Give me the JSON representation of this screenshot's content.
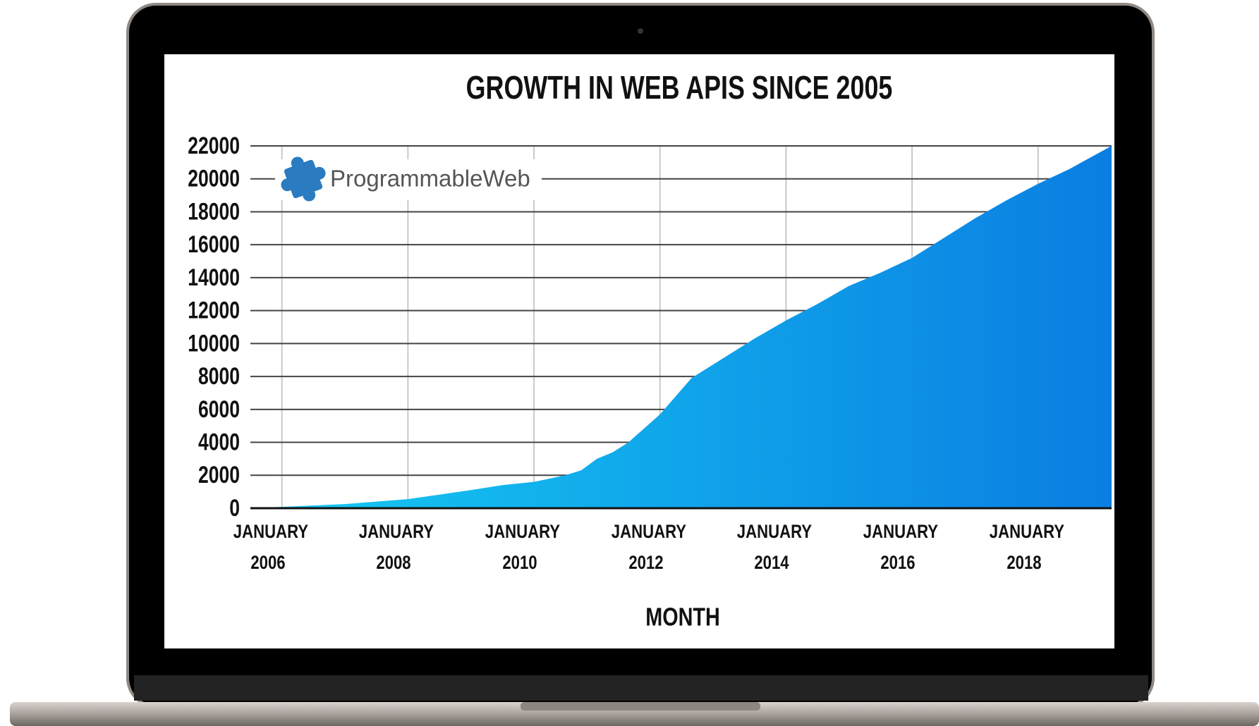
{
  "chart_data": {
    "type": "area",
    "title": "GROWTH IN WEB APIS SINCE 2005",
    "x_label": "MONTH",
    "logo_text": "ProgrammableWeb",
    "x": [
      "2005-07",
      "2006-01",
      "2007-01",
      "2008-01",
      "2009-01",
      "2009-07",
      "2010-01",
      "2010-07",
      "2010-10",
      "2011-01",
      "2011-04",
      "2011-07",
      "2012-01",
      "2012-07",
      "2013-01",
      "2013-07",
      "2014-01",
      "2014-07",
      "2015-01",
      "2015-07",
      "2016-01",
      "2016-07",
      "2017-01",
      "2017-07",
      "2018-01",
      "2018-07",
      "2019-03"
    ],
    "series": [
      {
        "colors": [
          "#16cbf2",
          "#0a7ee2"
        ],
        "values": [
          0,
          80,
          250,
          550,
          1100,
          1400,
          1600,
          2000,
          2300,
          3000,
          3400,
          4000,
          5700,
          7900,
          9100,
          10300,
          11400,
          12400,
          13500,
          14300,
          15200,
          16400,
          17600,
          18700,
          19700,
          20600,
          22000
        ]
      }
    ],
    "xlim": [
      "2005-07",
      "2019-03"
    ],
    "xticks": [
      {
        "value": "2006-01",
        "label": "JANUARY 2006"
      },
      {
        "value": "2008-01",
        "label": "JANUARY 2008"
      },
      {
        "value": "2010-01",
        "label": "JANUARY 2010"
      },
      {
        "value": "2012-01",
        "label": "JANUARY 2012"
      },
      {
        "value": "2014-01",
        "label": "JANUARY 2014"
      },
      {
        "value": "2016-01",
        "label": "JANUARY 2016"
      },
      {
        "value": "2018-01",
        "label": "JANUARY 2018"
      }
    ],
    "ylim": [
      0,
      22000
    ],
    "yticks": [
      0,
      2000,
      4000,
      6000,
      8000,
      10000,
      12000,
      14000,
      16000,
      18000,
      20000,
      22000
    ],
    "grid": true
  }
}
